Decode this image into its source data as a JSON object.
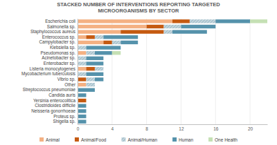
{
  "chart_data": {
    "type": "bar",
    "orientation": "horizontal",
    "stacked": true,
    "grid": true,
    "legend": "bottom",
    "title": "STACKED NUMBER OF INTERVENTIONS REPORTING TARGETED MICROORGANISMS BY SECTOR",
    "categories": [
      "Escherichia coli",
      "Salmonella sp.",
      "Staphylococcus aureus",
      "Enterococcus sp.",
      "Campylobacter sp.",
      "Klebsiella sp.",
      "Pseudomonas sp.",
      "Acinetobacter sp.",
      "Enterobacter sp.",
      "Listeria monocytogenes",
      "Mycobacterium tuberculosis",
      "Vibrio sp.",
      "Other",
      "Streptococcus pneumoniae",
      "Candida auris",
      "Yersinia enterocolitica",
      "Clostridioides difficile",
      "Neisseria gonorrhoeae",
      "Proteus sp.",
      "Shigella sp."
    ],
    "series": [
      {
        "name": "Animal",
        "color": "#f4b183",
        "values": [
          11,
          8,
          5,
          1,
          3,
          0,
          1,
          0,
          0,
          1,
          0,
          0,
          1,
          0,
          0,
          0,
          0,
          0,
          0,
          0
        ]
      },
      {
        "name": "Animal/Food",
        "color": "#c55a11",
        "values": [
          2,
          2,
          5,
          1,
          1,
          0,
          0,
          0,
          0,
          1,
          0,
          1,
          0,
          0,
          0,
          1,
          0,
          0,
          0,
          0
        ]
      },
      {
        "name": "Animal/Human",
        "color": "#a9c3ce",
        "values": [
          3,
          2,
          1,
          1,
          1,
          1,
          1,
          1,
          1,
          1,
          1,
          1,
          1,
          0,
          0,
          0,
          0,
          0,
          0,
          0
        ]
      },
      {
        "name": "Human",
        "color": "#5592ab",
        "values": [
          4,
          4,
          4,
          4,
          2,
          4,
          2,
          2,
          2,
          0,
          2,
          1,
          0,
          2,
          1,
          0,
          1,
          1,
          1,
          1
        ]
      },
      {
        "name": "One Health",
        "color": "#c5e0b4",
        "values": [
          2,
          0,
          0,
          0,
          0,
          0,
          1,
          0,
          0,
          0,
          0,
          0,
          0,
          0,
          0,
          0,
          0,
          0,
          0,
          0
        ]
      }
    ],
    "xlim": [
      0,
      22
    ],
    "xticks": [
      0,
      4,
      8,
      12,
      16,
      20
    ]
  }
}
